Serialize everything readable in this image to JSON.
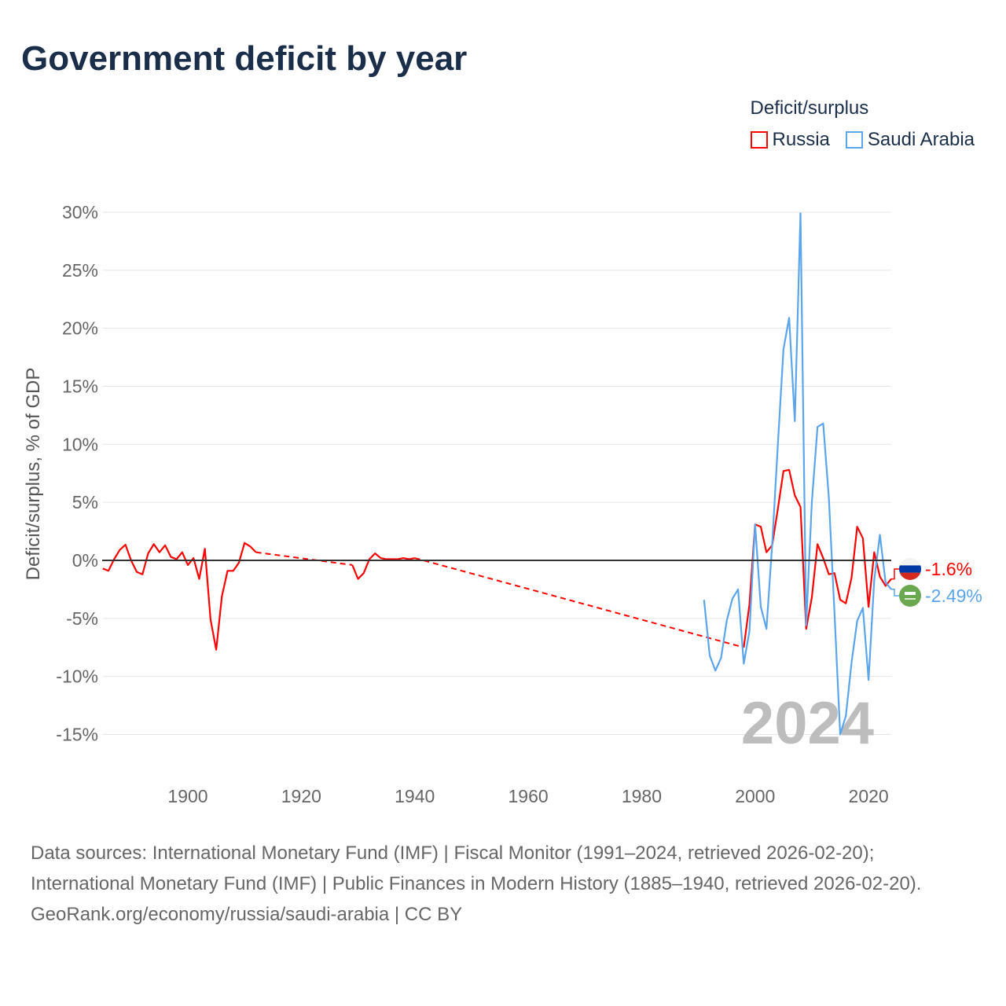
{
  "title": "Government deficit by year",
  "legend": {
    "title": "Deficit/surplus",
    "items": [
      {
        "label": "Russia",
        "color": "#ff0000"
      },
      {
        "label": "Saudi Arabia",
        "color": "#5aa5eb"
      }
    ]
  },
  "chart_data": {
    "type": "line",
    "title": "Government deficit by year",
    "xlabel": "",
    "ylabel": "Deficit/surplus, % of GDP",
    "xlim": [
      1885,
      2024
    ],
    "ylim": [
      -15,
      30
    ],
    "xticks": [
      1900,
      1920,
      1940,
      1960,
      1980,
      2000,
      2020
    ],
    "yticks": [
      -15,
      -10,
      -5,
      0,
      5,
      10,
      15,
      20,
      25,
      30
    ],
    "ytick_labels": [
      "-15%",
      "-10%",
      "-5%",
      "0%",
      "5%",
      "10%",
      "15%",
      "20%",
      "25%",
      "30%"
    ],
    "grid": true,
    "legend_position": "top-right",
    "current_year_label": "2024",
    "series": [
      {
        "name": "Russia",
        "color": "#ff0000",
        "end_label": "-1.6%",
        "points": [
          [
            1885,
            -0.7
          ],
          [
            1886,
            -0.9
          ],
          [
            1887,
            0.1
          ],
          [
            1888,
            0.9
          ],
          [
            1889,
            1.35
          ],
          [
            1890,
            0.0
          ],
          [
            1891,
            -1.0
          ],
          [
            1892,
            -1.2
          ],
          [
            1893,
            0.6
          ],
          [
            1894,
            1.4
          ],
          [
            1895,
            0.7
          ],
          [
            1896,
            1.3
          ],
          [
            1897,
            0.3
          ],
          [
            1898,
            0.1
          ],
          [
            1899,
            0.7
          ],
          [
            1900,
            -0.4
          ],
          [
            1901,
            0.2
          ],
          [
            1902,
            -1.6
          ],
          [
            1903,
            1.0
          ],
          [
            1904,
            -5.1
          ],
          [
            1905,
            -7.7
          ],
          [
            1906,
            -3.1
          ],
          [
            1907,
            -0.9
          ],
          [
            1908,
            -0.9
          ],
          [
            1909,
            -0.2
          ],
          [
            1910,
            1.5
          ],
          [
            1911,
            1.2
          ],
          [
            1912,
            0.7
          ],
          [
            1929,
            -0.4
          ],
          [
            1930,
            -1.6
          ],
          [
            1931,
            -1.1
          ],
          [
            1932,
            0.1
          ],
          [
            1933,
            0.6
          ],
          [
            1934,
            0.2
          ],
          [
            1935,
            0.1
          ],
          [
            1936,
            0.1
          ],
          [
            1937,
            0.1
          ],
          [
            1938,
            0.2
          ],
          [
            1939,
            0.1
          ],
          [
            1940,
            0.2
          ],
          [
            1998,
            -7.5
          ],
          [
            1999,
            -3.8
          ],
          [
            2000,
            3.1
          ],
          [
            2001,
            2.9
          ],
          [
            2002,
            0.7
          ],
          [
            2003,
            1.3
          ],
          [
            2004,
            4.4
          ],
          [
            2005,
            7.7
          ],
          [
            2006,
            7.8
          ],
          [
            2007,
            5.6
          ],
          [
            2008,
            4.6
          ],
          [
            2009,
            -5.9
          ],
          [
            2010,
            -3.2
          ],
          [
            2011,
            1.4
          ],
          [
            2012,
            0.2
          ],
          [
            2013,
            -1.2
          ],
          [
            2014,
            -1.1
          ],
          [
            2015,
            -3.4
          ],
          [
            2016,
            -3.7
          ],
          [
            2017,
            -1.5
          ],
          [
            2018,
            2.9
          ],
          [
            2019,
            1.9
          ],
          [
            2020,
            -4.0
          ],
          [
            2021,
            0.7
          ],
          [
            2022,
            -1.4
          ],
          [
            2023,
            -2.2
          ],
          [
            2024,
            -1.6
          ]
        ]
      },
      {
        "name": "Saudi Arabia",
        "color": "#5aa5eb",
        "end_label": "-2.49%",
        "points": [
          [
            1991,
            -3.4
          ],
          [
            1992,
            -8.2
          ],
          [
            1993,
            -9.5
          ],
          [
            1994,
            -8.4
          ],
          [
            1995,
            -5.2
          ],
          [
            1996,
            -3.3
          ],
          [
            1997,
            -2.5
          ],
          [
            1998,
            -8.9
          ],
          [
            1999,
            -6.1
          ],
          [
            2000,
            3.1
          ],
          [
            2001,
            -4.0
          ],
          [
            2002,
            -5.9
          ],
          [
            2003,
            1.3
          ],
          [
            2004,
            9.9
          ],
          [
            2005,
            18.2
          ],
          [
            2006,
            20.9
          ],
          [
            2007,
            12.0
          ],
          [
            2008,
            29.9
          ],
          [
            2009,
            -5.6
          ],
          [
            2010,
            5.0
          ],
          [
            2011,
            11.5
          ],
          [
            2012,
            11.8
          ],
          [
            2013,
            5.4
          ],
          [
            2014,
            -4.6
          ],
          [
            2015,
            -15.0
          ],
          [
            2016,
            -13.4
          ],
          [
            2017,
            -8.8
          ],
          [
            2018,
            -5.2
          ],
          [
            2019,
            -4.1
          ],
          [
            2020,
            -10.3
          ],
          [
            2021,
            -1.7
          ],
          [
            2022,
            2.2
          ],
          [
            2023,
            -1.9
          ],
          [
            2024,
            -2.49
          ]
        ]
      }
    ]
  },
  "footer": {
    "sources": "Data sources: International Monetary Fund (IMF) | Fiscal Monitor (1991–2024, retrieved 2026-02-20); International Monetary Fund (IMF) | Public Finances in Modern History (1885–1940, retrieved 2026-02-20).",
    "credit": "GeoRank.org/economy/russia/saudi-arabia | CC BY"
  }
}
